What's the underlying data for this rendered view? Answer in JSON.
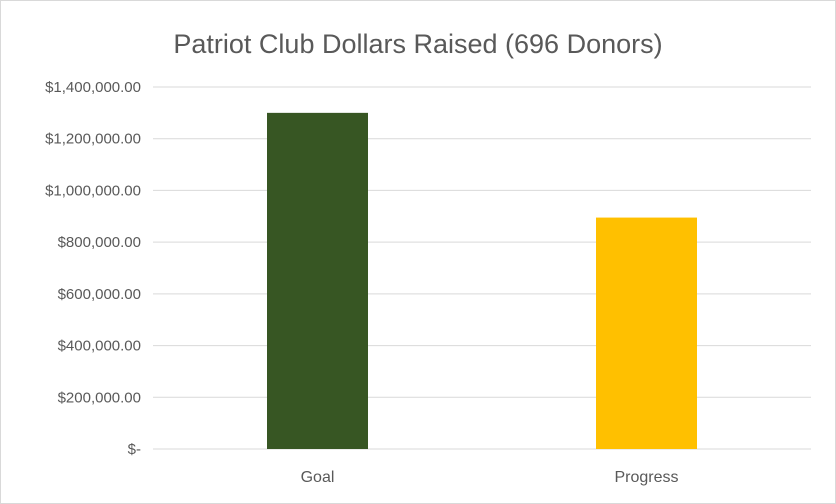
{
  "chart_data": {
    "type": "bar",
    "title": "Patriot Club Dollars Raised (696 Donors)",
    "categories": [
      "Goal",
      "Progress"
    ],
    "values": [
      1300000,
      895000
    ],
    "bar_colors": [
      "#375623",
      "#ffc000"
    ],
    "ylim": [
      0,
      1400000
    ],
    "yticks": [
      0,
      200000,
      400000,
      600000,
      800000,
      1000000,
      1200000,
      1400000
    ],
    "ytick_labels": [
      "$-",
      "$200,000.00",
      "$400,000.00",
      "$600,000.00",
      "$800,000.00",
      "$1,000,000.00",
      "$1,200,000.00",
      "$1,400,000.00"
    ],
    "grid": true,
    "legend": "none",
    "xlabel": "",
    "ylabel": ""
  }
}
